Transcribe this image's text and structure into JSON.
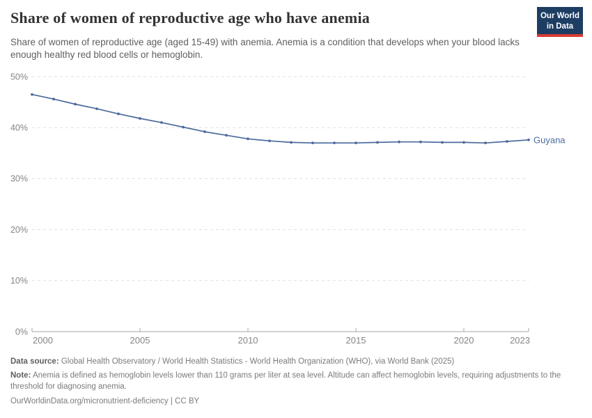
{
  "header": {
    "title": "Share of women of reproductive age who have anemia",
    "subtitle": "Share of women of reproductive age (aged 15-49) with anemia. Anemia is a condition that develops when your blood lacks enough healthy red blood cells or hemoglobin.",
    "logo": {
      "line1": "Our World",
      "line2": "in Data",
      "bg_color": "#1d3d63",
      "stripe_color": "#d73c34"
    }
  },
  "chart_data": {
    "type": "line",
    "title": "Share of women of reproductive age who have anemia",
    "xlabel": "",
    "ylabel": "",
    "ylim": [
      0,
      50
    ],
    "yticks": [
      0,
      10,
      20,
      30,
      40,
      50
    ],
    "ytick_suffix": "%",
    "xticks": [
      2000,
      2005,
      2010,
      2015,
      2020,
      2023
    ],
    "grid": "dashed-horizontal",
    "legend": "end-of-line-label",
    "x": [
      2000,
      2001,
      2002,
      2003,
      2004,
      2005,
      2006,
      2007,
      2008,
      2009,
      2010,
      2011,
      2012,
      2013,
      2014,
      2015,
      2016,
      2017,
      2018,
      2019,
      2020,
      2021,
      2022,
      2023
    ],
    "series": [
      {
        "name": "Guyana",
        "color": "#4C6A9C",
        "values": [
          46.5,
          45.6,
          44.6,
          43.7,
          42.7,
          41.8,
          41.0,
          40.1,
          39.2,
          38.5,
          37.8,
          37.4,
          37.1,
          37.0,
          37.0,
          37.0,
          37.1,
          37.2,
          37.2,
          37.1,
          37.1,
          37.0,
          37.3,
          37.6
        ]
      }
    ]
  },
  "footer": {
    "data_source_label": "Data source:",
    "data_source_text": " Global Health Observatory / World Health Statistics - World Health Organization (WHO), via World Bank (2025)",
    "note_label": "Note:",
    "note_text": " Anemia is defined as hemoglobin levels lower than 110 grams per liter at sea level. Altitude can affect hemoglobin levels, requiring adjustments to the threshold for diagnosing anemia.",
    "citation": "OurWorldinData.org/micronutrient-deficiency | CC BY"
  },
  "colors": {
    "series": "#4C6A9C",
    "gridline": "#e0e0e0",
    "axis": "#a5a5a5",
    "axis_label": "#858585",
    "title": "#333333",
    "subtitle": "#5f5f5f",
    "footer": "#7b7b7b"
  }
}
